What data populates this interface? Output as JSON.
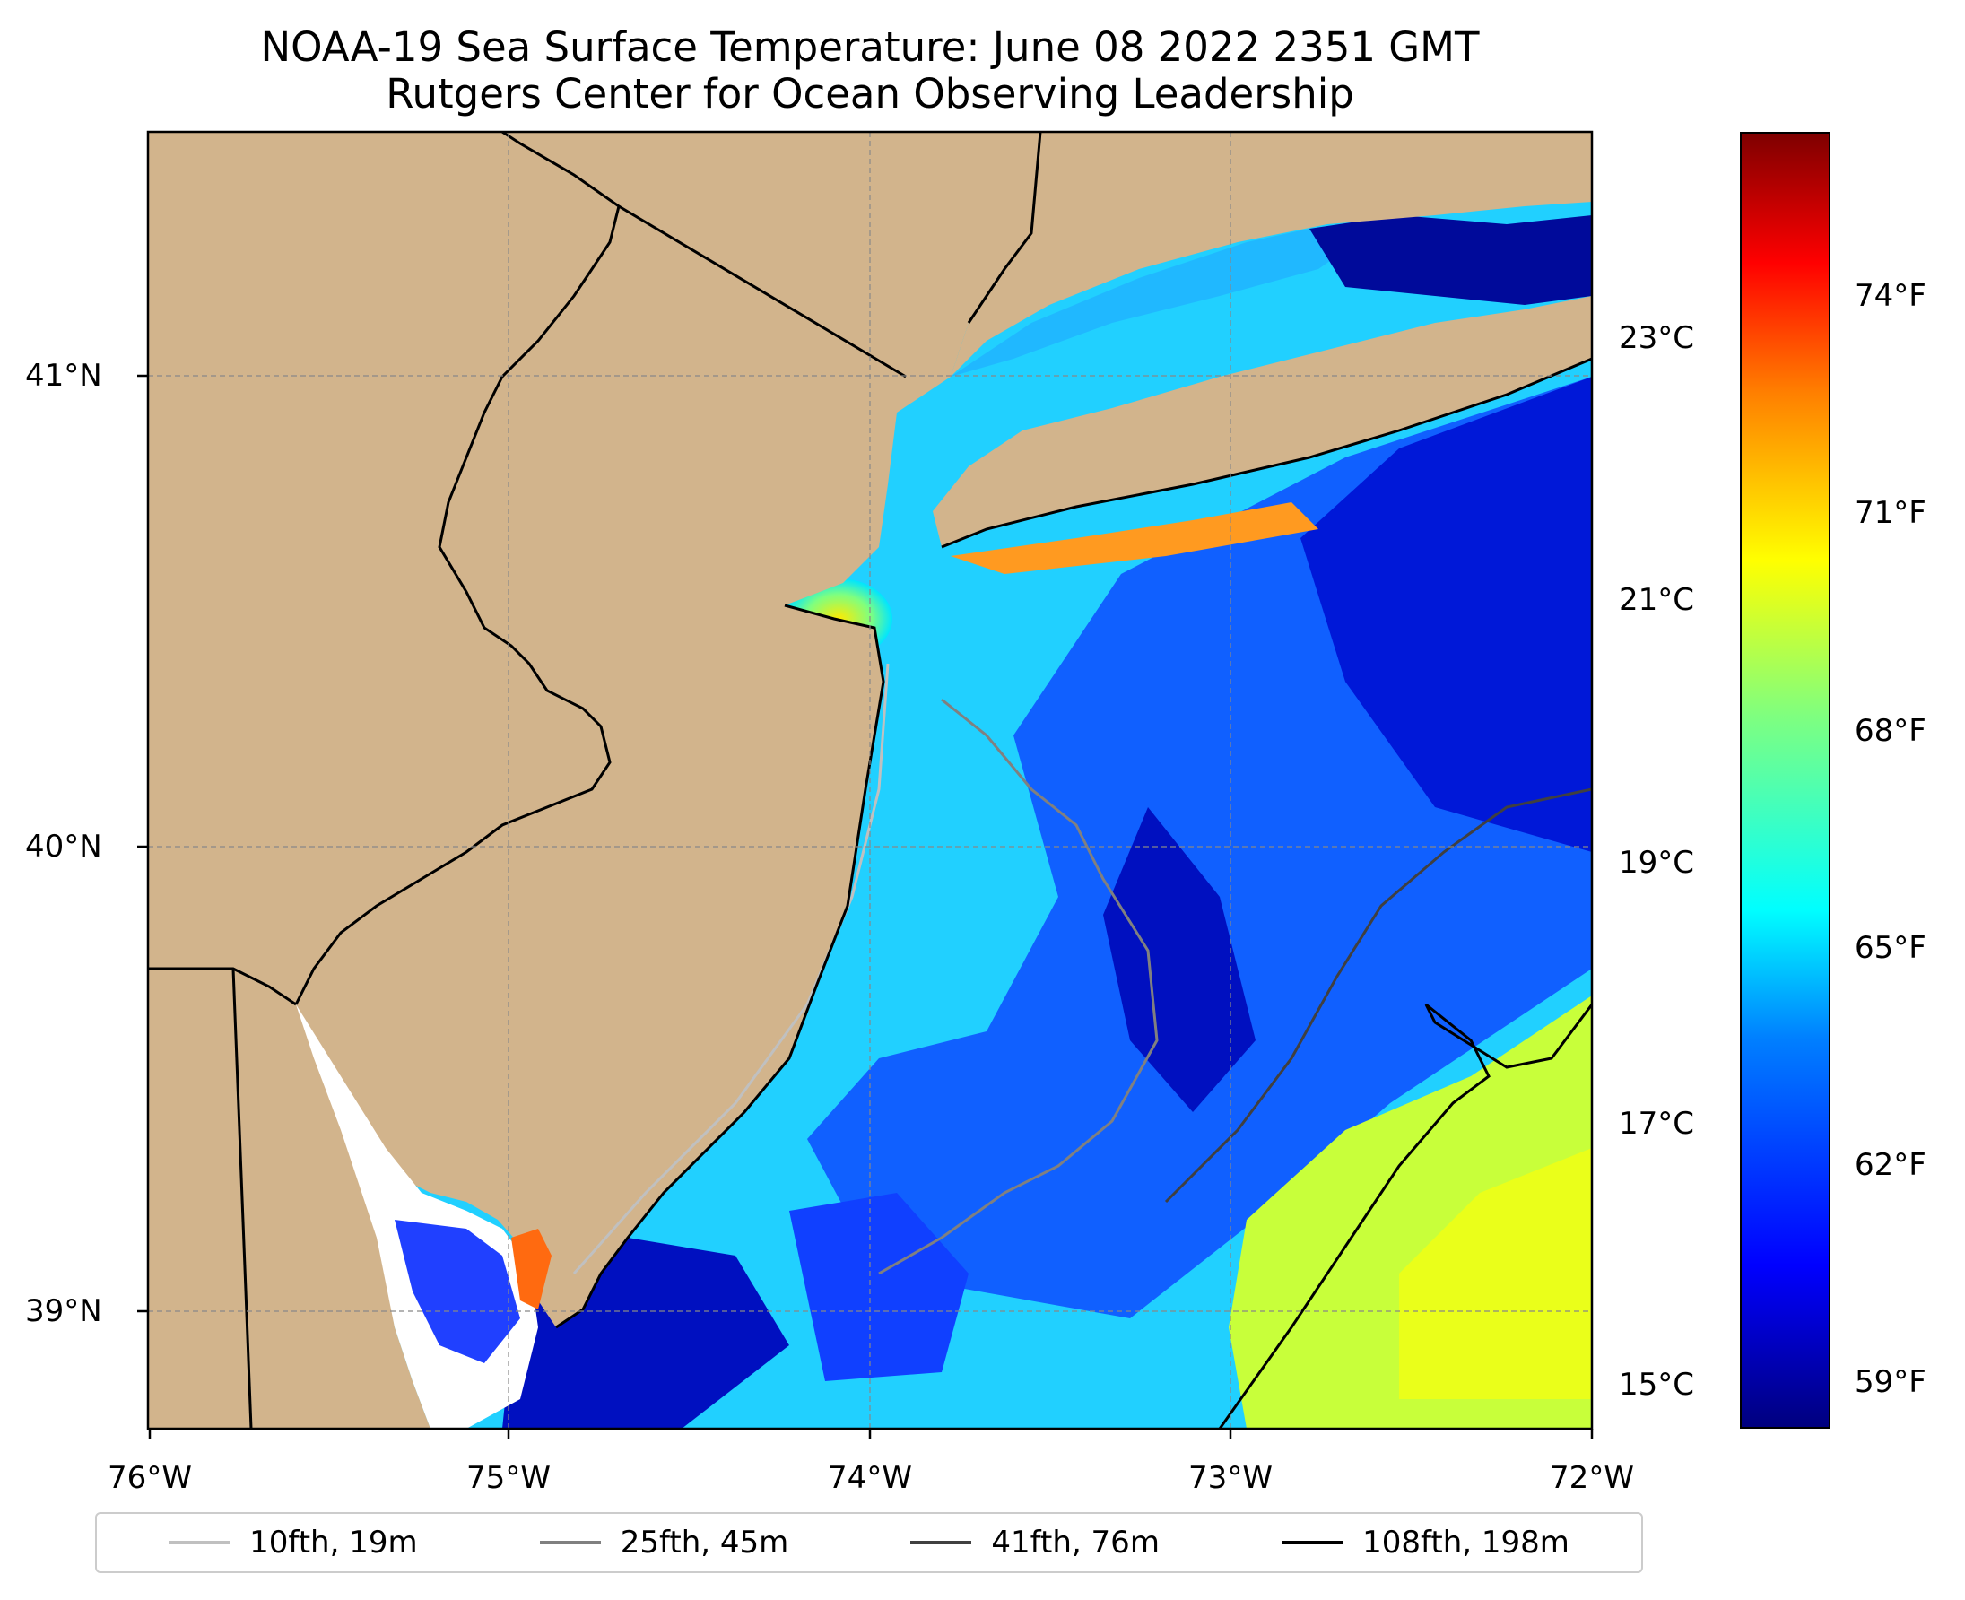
{
  "title": "NOAA-19 Sea Surface Temperature: June 08 2022 2351 GMT",
  "subtitle": "Rutgers Center for Ocean Observing Leadership",
  "map": {
    "longitude_ticks": [
      "76°W",
      "75°W",
      "74°W",
      "73°W",
      "72°W"
    ],
    "latitude_ticks": [
      "41°N",
      "40°N",
      "39°N"
    ],
    "extent": {
      "lon_min": -76,
      "lon_max": -72,
      "lat_min": 38.75,
      "lat_max": 41.5
    },
    "land_color": "#d2b48c",
    "grid": "dashed gray"
  },
  "colorbar": {
    "colormap": "jet",
    "celsius_ticks": [
      "23°C",
      "21°C",
      "19°C",
      "17°C",
      "15°C"
    ],
    "fahrenheit_ticks": [
      "74°F",
      "71°F",
      "68°F",
      "65°F",
      "62°F",
      "59°F"
    ],
    "range_f": [
      58,
      77
    ]
  },
  "legend": {
    "items": [
      {
        "label": "10fth, 19m",
        "color": "#c0c0c0"
      },
      {
        "label": "25fth, 45m",
        "color": "#808080"
      },
      {
        "label": "41fth, 76m",
        "color": "#404040"
      },
      {
        "label": "108fth, 198m",
        "color": "#000000"
      }
    ]
  },
  "chart_data": {
    "type": "heatmap",
    "title": "NOAA-19 Sea Surface Temperature: June 08 2022 2351 GMT",
    "subtitle": "Rutgers Center for Ocean Observing Leadership",
    "x_axis": {
      "ticks": [
        "76°W",
        "75°W",
        "74°W",
        "73°W",
        "72°W"
      ],
      "range": [
        -76,
        -72
      ]
    },
    "y_axis": {
      "ticks": [
        "39°N",
        "40°N",
        "41°N"
      ],
      "range": [
        38.75,
        41.5
      ]
    },
    "colorbar_ticks_c": [
      15,
      17,
      19,
      21,
      23
    ],
    "colorbar_ticks_f": [
      59,
      62,
      65,
      68,
      71,
      74
    ],
    "contours": [
      "10fth, 19m",
      "25fth, 45m",
      "41fth, 76m",
      "108fth, 198m"
    ],
    "legend_position": "bottom"
  }
}
